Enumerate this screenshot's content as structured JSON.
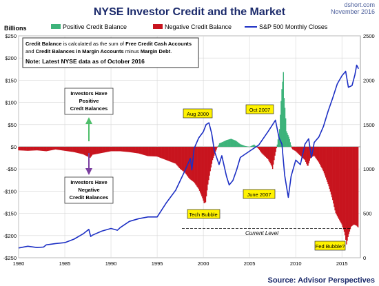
{
  "header": {
    "title": "NYSE Investor Credit and the Market",
    "site": "dshort.com",
    "date": "November 2016",
    "units": "Billions"
  },
  "legend": {
    "positive": "Positive Credit Balance",
    "negative": "Negative Credit Balance",
    "sp500": "S&P 500 Monthly Closes"
  },
  "notes": {
    "line1_bold": "Credit Balance",
    "line1_rest": " is calculated as the sum of ",
    "line1_bold2": "Free Credit Cash Accounts",
    "line2_pre": "and ",
    "line2_bold": "Credit Balances in Margin Accounts",
    "line2_mid": " minus ",
    "line2_bold2": "Margin Debt",
    "line2_end": ".",
    "line3": "Note: Latest NYSE data as of October 2016"
  },
  "annotations": {
    "positive_box": [
      "Investors Have",
      "Positive",
      "Credt Balances"
    ],
    "negative_box": [
      "Investors Have",
      "Negative",
      "Credit Balances"
    ],
    "aug2000": "Aug 2000",
    "oct2007": "Oct 2007",
    "jun2007": "June 2007",
    "tech_bubble": "Tech Bubble",
    "current_level": "Current Level",
    "fed_bubble": "Fed Bubble?"
  },
  "source": "Source: Advisor Perspectives",
  "colors": {
    "positive": "#3db37a",
    "negative": "#c8141e",
    "sp500": "#1c2fc4",
    "arrow_up": "#4fbf6b",
    "arrow_down": "#7b3fa0",
    "annotation_fill": "#fff200"
  },
  "chart_data": {
    "type": "area",
    "title": "NYSE Investor Credit and the Market",
    "ylabel": "Billions",
    "xlim": [
      1980,
      2017
    ],
    "ylim_left": [
      -250,
      250
    ],
    "ylim_right": [
      0,
      2500
    ],
    "x_ticks": [
      "1980",
      "1985",
      "1990",
      "1995",
      "2000",
      "2005",
      "2010",
      "2015"
    ],
    "y_left_ticks": [
      "$250",
      "$200",
      "$150",
      "$100",
      "$50",
      "$0",
      "-$50",
      "-$100",
      "-$150",
      "-$200",
      "-$250"
    ],
    "y_right_ticks": [
      "2500",
      "2000",
      "1500",
      "1000",
      "500",
      "0"
    ],
    "grid": true,
    "legend_position": "top",
    "current_level": -183,
    "series": [
      {
        "name": "Credit Balance",
        "axis": "left",
        "points": [
          [
            1980.0,
            -8
          ],
          [
            1981.0,
            -9
          ],
          [
            1982.0,
            -8
          ],
          [
            1983.0,
            -10
          ],
          [
            1983.5,
            -8
          ],
          [
            1984.0,
            -6
          ],
          [
            1985.0,
            -9
          ],
          [
            1986.0,
            -12
          ],
          [
            1987.0,
            -17
          ],
          [
            1987.75,
            -25
          ],
          [
            1988.0,
            -18
          ],
          [
            1989.0,
            -14
          ],
          [
            1990.0,
            -10
          ],
          [
            1991.0,
            -10
          ],
          [
            1992.0,
            -12
          ],
          [
            1993.0,
            -15
          ],
          [
            1994.0,
            -21
          ],
          [
            1995.0,
            -22
          ],
          [
            1996.0,
            -30
          ],
          [
            1997.0,
            -38
          ],
          [
            1997.5,
            -50
          ],
          [
            1998.0,
            -58
          ],
          [
            1998.5,
            -72
          ],
          [
            1999.0,
            -80
          ],
          [
            1999.5,
            -95
          ],
          [
            1999.9,
            -115
          ],
          [
            2000.1,
            -128
          ],
          [
            2000.25,
            -125
          ],
          [
            2000.5,
            -85
          ],
          [
            2000.75,
            -55
          ],
          [
            2001.0,
            -30
          ],
          [
            2001.25,
            -15
          ],
          [
            2001.5,
            -2
          ],
          [
            2001.75,
            8
          ],
          [
            2002.0,
            10
          ],
          [
            2002.5,
            15
          ],
          [
            2003.0,
            18
          ],
          [
            2003.5,
            14
          ],
          [
            2004.0,
            6
          ],
          [
            2004.5,
            2
          ],
          [
            2005.0,
            0
          ],
          [
            2005.5,
            5
          ],
          [
            2006.0,
            -5
          ],
          [
            2006.3,
            -14
          ],
          [
            2006.6,
            -20
          ],
          [
            2007.0,
            -28
          ],
          [
            2007.4,
            -43
          ],
          [
            2007.5,
            -50
          ],
          [
            2007.75,
            -20
          ],
          [
            2008.0,
            5
          ],
          [
            2008.25,
            40
          ],
          [
            2008.4,
            98
          ],
          [
            2008.5,
            130
          ],
          [
            2008.6,
            150
          ],
          [
            2008.65,
            180
          ],
          [
            2008.75,
            110
          ],
          [
            2008.9,
            70
          ],
          [
            2009.0,
            35
          ],
          [
            2009.3,
            20
          ],
          [
            2009.6,
            -5
          ],
          [
            2010.0,
            -10
          ],
          [
            2010.5,
            -20
          ],
          [
            2011.0,
            -30
          ],
          [
            2011.3,
            -45
          ],
          [
            2011.6,
            -25
          ],
          [
            2012.0,
            -20
          ],
          [
            2012.5,
            -35
          ],
          [
            2013.0,
            -55
          ],
          [
            2013.3,
            -72
          ],
          [
            2013.6,
            -90
          ],
          [
            2014.0,
            -120
          ],
          [
            2014.3,
            -148
          ],
          [
            2014.6,
            -160
          ],
          [
            2015.0,
            -175
          ],
          [
            2015.3,
            -195
          ],
          [
            2015.5,
            -220
          ],
          [
            2015.7,
            -200
          ],
          [
            2016.0,
            -180
          ],
          [
            2016.3,
            -175
          ],
          [
            2016.6,
            -178
          ],
          [
            2016.8,
            -183
          ]
        ]
      },
      {
        "name": "S&P 500 Monthly Closes",
        "axis": "right",
        "points": [
          [
            1980.0,
            110
          ],
          [
            1981.0,
            130
          ],
          [
            1982.0,
            115
          ],
          [
            1982.7,
            120
          ],
          [
            1983.0,
            145
          ],
          [
            1984.0,
            160
          ],
          [
            1985.0,
            170
          ],
          [
            1986.0,
            210
          ],
          [
            1987.0,
            270
          ],
          [
            1987.6,
            320
          ],
          [
            1987.8,
            240
          ],
          [
            1988.0,
            255
          ],
          [
            1989.0,
            300
          ],
          [
            1990.0,
            330
          ],
          [
            1990.7,
            310
          ],
          [
            1991.0,
            340
          ],
          [
            1992.0,
            410
          ],
          [
            1993.0,
            440
          ],
          [
            1994.0,
            460
          ],
          [
            1995.0,
            460
          ],
          [
            1996.0,
            620
          ],
          [
            1997.0,
            760
          ],
          [
            1998.0,
            980
          ],
          [
            1998.6,
            1120
          ],
          [
            1998.75,
            990
          ],
          [
            1999.0,
            1230
          ],
          [
            1999.5,
            1350
          ],
          [
            2000.0,
            1420
          ],
          [
            2000.3,
            1500
          ],
          [
            2000.6,
            1520
          ],
          [
            2000.9,
            1400
          ],
          [
            2001.2,
            1200
          ],
          [
            2001.7,
            1050
          ],
          [
            2002.0,
            1150
          ],
          [
            2002.5,
            920
          ],
          [
            2002.8,
            820
          ],
          [
            2003.2,
            870
          ],
          [
            2003.6,
            990
          ],
          [
            2004.0,
            1130
          ],
          [
            2005.0,
            1200
          ],
          [
            2006.0,
            1270
          ],
          [
            2007.0,
            1420
          ],
          [
            2007.5,
            1500
          ],
          [
            2007.8,
            1550
          ],
          [
            2008.2,
            1350
          ],
          [
            2008.5,
            1280
          ],
          [
            2008.8,
            930
          ],
          [
            2009.1,
            740
          ],
          [
            2009.2,
            680
          ],
          [
            2009.5,
            920
          ],
          [
            2010.0,
            1100
          ],
          [
            2010.5,
            1050
          ],
          [
            2011.0,
            1280
          ],
          [
            2011.4,
            1340
          ],
          [
            2011.7,
            1130
          ],
          [
            2012.0,
            1300
          ],
          [
            2012.5,
            1360
          ],
          [
            2013.0,
            1480
          ],
          [
            2013.5,
            1650
          ],
          [
            2014.0,
            1800
          ],
          [
            2014.5,
            1960
          ],
          [
            2015.0,
            2050
          ],
          [
            2015.4,
            2100
          ],
          [
            2015.7,
            1920
          ],
          [
            2016.1,
            1940
          ],
          [
            2016.4,
            2060
          ],
          [
            2016.6,
            2170
          ],
          [
            2016.8,
            2130
          ]
        ]
      }
    ]
  }
}
